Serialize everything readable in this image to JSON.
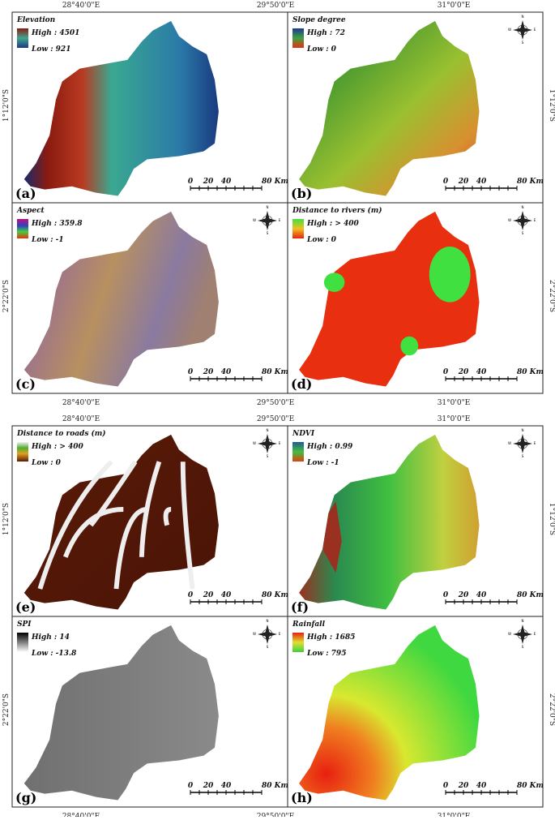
{
  "coords": {
    "lon": [
      "28°40'0\"E",
      "29°50'0\"E",
      "31°0'0\"E"
    ],
    "lat": [
      "1°12'0\"S",
      "2°22'0\"S"
    ]
  },
  "scale": [
    "0",
    "20",
    "40",
    "80 Km"
  ],
  "compass": [
    "N",
    "E",
    "S",
    "W"
  ],
  "panels": [
    {
      "letter": "(a)",
      "title": "Elevation",
      "high": "High : 4501",
      "low": "Low : 921",
      "compass": false
    },
    {
      "letter": "(b)",
      "title": "Slope degree",
      "high": "High : 72",
      "low": "Low : 0",
      "compass": true
    },
    {
      "letter": "(c)",
      "title": "Aspect",
      "high": "High : 359.8",
      "low": "Low : -1",
      "compass": true
    },
    {
      "letter": "(d)",
      "title": "Distance to rivers (m)",
      "high": "High : > 400",
      "low": "Low : 0",
      "compass": true
    },
    {
      "letter": "(e)",
      "title": "Distance to roads (m)",
      "high": "High : > 400",
      "low": "Low : 0",
      "compass": true
    },
    {
      "letter": "(f)",
      "title": "NDVI",
      "high": "High : 0.99",
      "low": "Low : -1",
      "compass": true
    },
    {
      "letter": "(g)",
      "title": "SPI",
      "high": "High : 14",
      "low": "Low : -13.8",
      "compass": true
    },
    {
      "letter": "(h)",
      "title": "Rainfall",
      "high": "High : 1685",
      "low": "Low : 795",
      "compass": true
    }
  ]
}
